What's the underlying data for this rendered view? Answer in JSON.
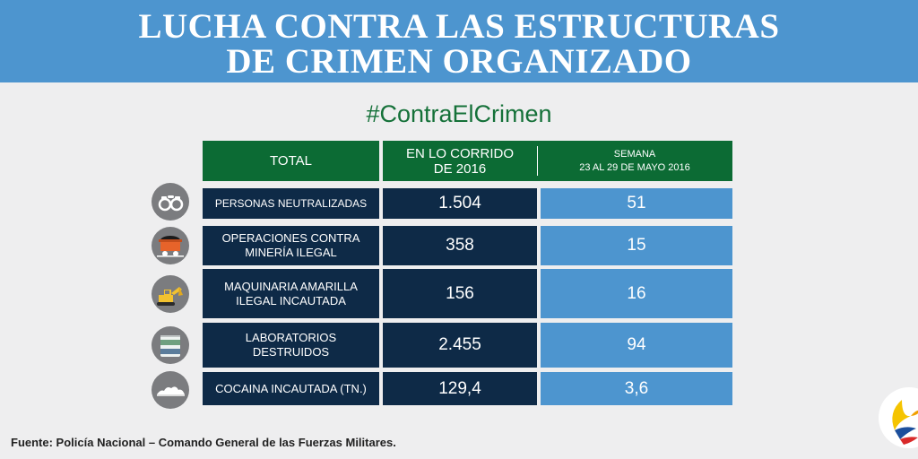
{
  "header": {
    "title_line1": "LUCHA CONTRA LAS ESTRUCTURAS",
    "title_line2": "DE CRIMEN ORGANIZADO"
  },
  "hashtag": "#ContraElCrimen",
  "table": {
    "col_total": "TOTAL",
    "col_year_line1": "EN LO CORRIDO",
    "col_year_line2": "DE 2016",
    "col_week_line1": "SEMANA",
    "col_week_line2": "23 AL 29 DE MAYO 2016",
    "rows": [
      {
        "label_line1": "PERSONAS NEUTRALIZADAS",
        "label_line2": "",
        "year": "1.504",
        "week": "51",
        "icon": "handcuffs-icon"
      },
      {
        "label_line1": "OPERACIONES CONTRA",
        "label_line2": "MINERÍA ILEGAL",
        "year": "358",
        "week": "15",
        "icon": "mine-cart-icon"
      },
      {
        "label_line1": "MAQUINARIA AMARILLA",
        "label_line2": "ILEGAL INCAUTADA",
        "year": "156",
        "week": "16",
        "icon": "excavator-icon"
      },
      {
        "label_line1": "LABORATORIOS",
        "label_line2": "DESTRUIDOS",
        "year": "2.455",
        "week": "94",
        "icon": "barrel-icon"
      },
      {
        "label_line1": "COCAINA INCAUTADA (TN.)",
        "label_line2": "",
        "year": "129,4",
        "week": "3,6",
        "icon": "powder-pile-icon"
      }
    ]
  },
  "source": "Fuente: Policía Nacional – Comando General de las Fuerzas Militares.",
  "colors": {
    "banner": "#4d95cf",
    "header_green": "#0c6b34",
    "navy": "#0e2a47",
    "week_blue": "#4d95cf",
    "hashtag_green": "#157139"
  }
}
